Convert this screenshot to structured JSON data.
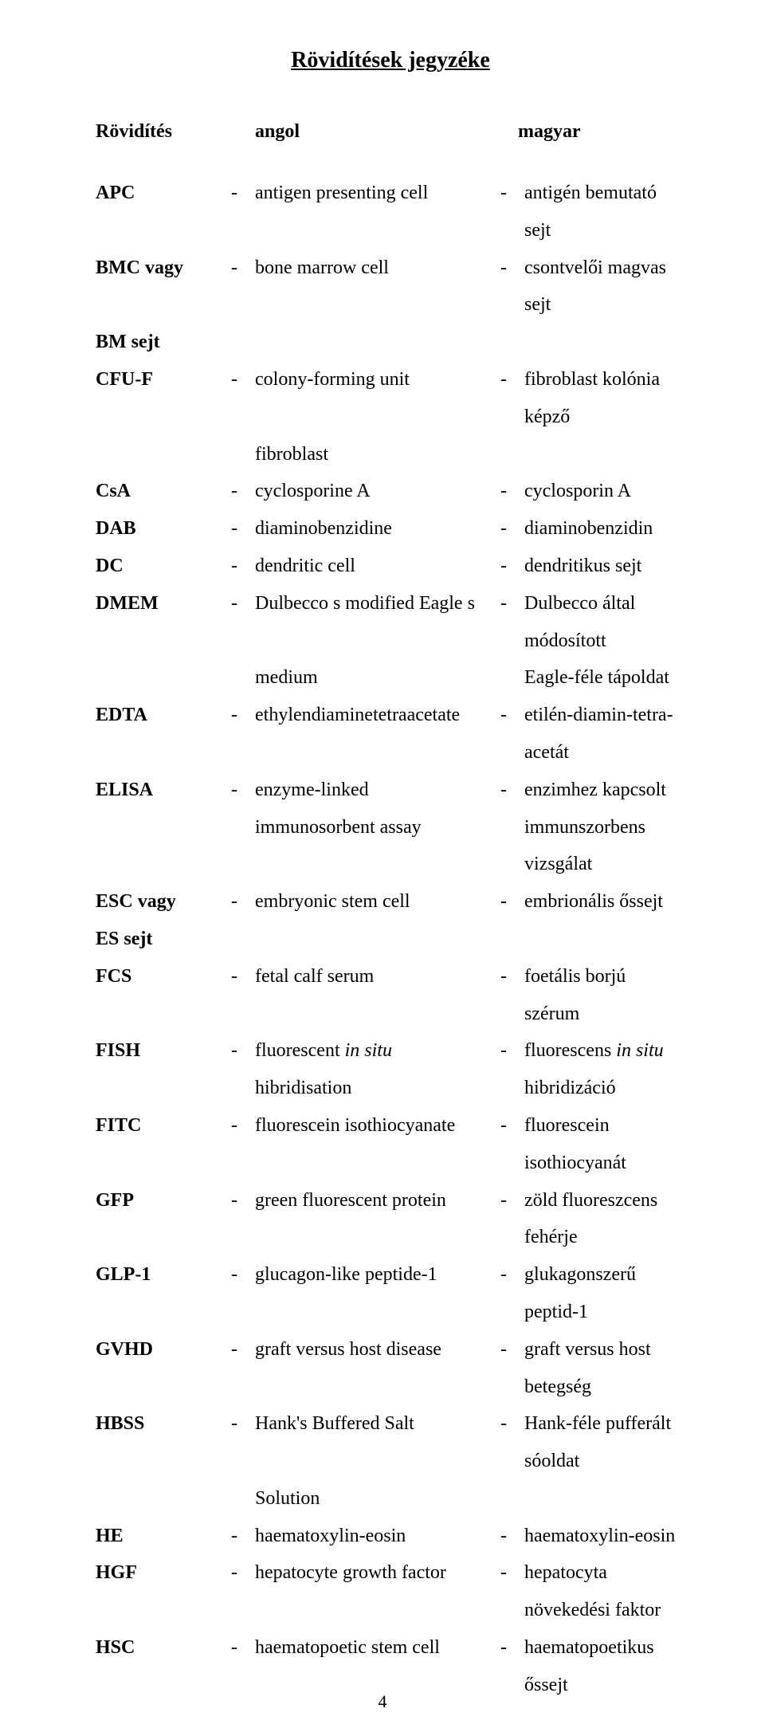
{
  "title": "Rövidítések jegyzéke",
  "header": {
    "c1": "Rövidítés",
    "c3": "angol",
    "c5": "magyar"
  },
  "dash": "-",
  "entries": [
    {
      "abbr": "APC",
      "eng": "antigen presenting cell",
      "hun": "antigén bemutató sejt"
    },
    {
      "abbr": "BMC vagy",
      "eng": "bone marrow cell",
      "hun": "csontvelői magvas sejt"
    },
    {
      "abbr": "BM sejt",
      "noRow": true
    },
    {
      "abbr": "CFU-F",
      "eng": "colony-forming unit",
      "hun": "fibroblast kolónia képző"
    },
    {
      "abbr": "",
      "eng": "fibroblast",
      "hun": "",
      "noDash": true
    },
    {
      "abbr": "CsA",
      "eng": "cyclosporine A",
      "hun": "cyclosporin A"
    },
    {
      "abbr": "DAB",
      "eng": "diaminobenzidine",
      "hun": "diaminobenzidin"
    },
    {
      "abbr": "DC",
      "eng": "dendritic cell",
      "hun": "dendritikus sejt"
    },
    {
      "abbr": "DMEM",
      "eng": "Dulbecco s modified Eagle s",
      "hun": "Dulbecco által módosított"
    },
    {
      "abbr": "",
      "eng": "medium",
      "hun": "Eagle-féle tápoldat",
      "noDash": true
    },
    {
      "abbr": "EDTA",
      "eng": "ethylendiaminetetraacetate",
      "hun": "etilén-diamin-tetra-acetát"
    },
    {
      "abbr": "ELISA",
      "eng": "enzyme-linked",
      "hun": "enzimhez kapcsolt"
    },
    {
      "abbr": "",
      "eng": "immunosorbent assay",
      "hun": "immunszorbens vizsgálat",
      "noDash": true
    },
    {
      "abbr": "ESC vagy",
      "eng": "embryonic stem cell",
      "hun": "embrionális őssejt"
    },
    {
      "abbr": "ES sejt",
      "noRow": true
    },
    {
      "abbr": "FCS",
      "eng": "fetal calf serum",
      "hun": "foetális borjú szérum"
    },
    {
      "abbr": "FISH",
      "engPre": "fluorescent ",
      "engItalic": "in situ",
      "hunPre": "fluorescens ",
      "hunItalic": "in situ"
    },
    {
      "abbr": "",
      "eng": "hibridisation",
      "hun": "hibridizáció",
      "noDash": true
    },
    {
      "abbr": "FITC",
      "eng": "fluorescein isothiocyanate",
      "hun": "fluorescein isothiocyanát"
    },
    {
      "abbr": "GFP",
      "eng": "green fluorescent protein",
      "hun": "zöld fluoreszcens fehérje"
    },
    {
      "abbr": "GLP-1",
      "eng": "glucagon-like peptide-1",
      "hun": "glukagonszerű peptid-1"
    },
    {
      "abbr": "GVHD",
      "eng": "graft versus host disease",
      "hun": "graft versus host betegség"
    },
    {
      "abbr": "HBSS",
      "eng": "Hank's Buffered Salt",
      "hun": "Hank-féle pufferált sóoldat"
    },
    {
      "abbr": "",
      "eng": "Solution",
      "hun": "",
      "noDash": true
    },
    {
      "abbr": "HE",
      "eng": "haematoxylin-eosin",
      "hun": "haematoxylin-eosin"
    },
    {
      "abbr": "HGF",
      "eng": "hepatocyte growth factor",
      "hun": "hepatocyta növekedési faktor"
    },
    {
      "abbr": "HSC",
      "eng": "haematopoetic stem cell",
      "hun": "haematopoetikus őssejt"
    }
  ],
  "pageNumber": "4",
  "colors": {
    "text": "#000000",
    "background": "#ffffff"
  },
  "typography": {
    "font_family": "Times New Roman",
    "title_fontsize": 28,
    "header_fontsize": 24,
    "body_fontsize": 24,
    "line_height": 1.95
  }
}
